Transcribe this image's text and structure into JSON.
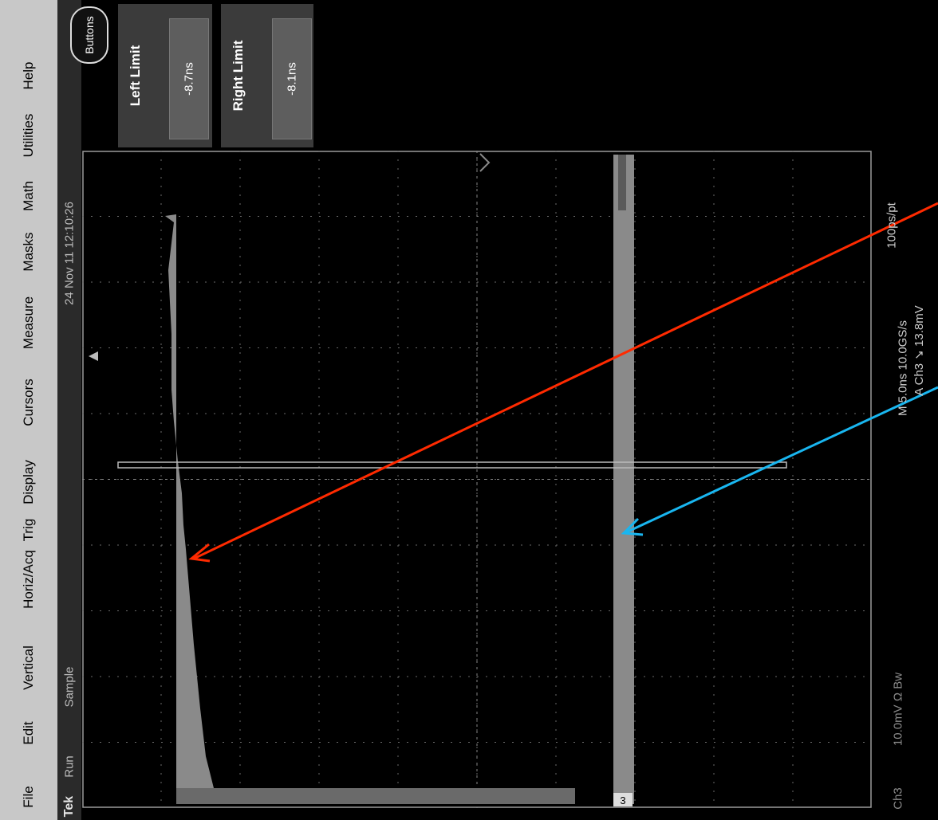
{
  "menu": {
    "items": [
      "File",
      "Edit",
      "Vertical",
      "Horiz/Acq",
      "Trig",
      "Display",
      "Cursors",
      "Measure",
      "Masks",
      "Math",
      "Utilities",
      "Help"
    ]
  },
  "status": {
    "brand": "Tek",
    "run_state": "Run",
    "acq_mode": "Sample",
    "timestamp": "24 Nov 11 12:10:26"
  },
  "controls": {
    "buttons_label": "Buttons",
    "left_limit": {
      "label": "Left Limit",
      "value": "-8.7ns"
    },
    "right_limit": {
      "label": "Right Limit",
      "value": "-8.1ns"
    }
  },
  "readouts": {
    "horizontal": "M 5.0ns 10.0GS/s",
    "record": "100ps/pt",
    "trigger": "A Ch3 ↘ 13.8mV",
    "channel": "Ch3",
    "vertical": "10.0mV Ω Bw",
    "channel_marker": "3"
  },
  "colors": {
    "background": "#000000",
    "menu": "#c8c8c8",
    "histogram": "#8a8a8a",
    "annotation_red": "#ff2a00",
    "annotation_blue": "#19b6f0"
  },
  "icons": [
    "trigger-position-marker",
    "horizontal-position-marker",
    "channel-3-marker"
  ]
}
